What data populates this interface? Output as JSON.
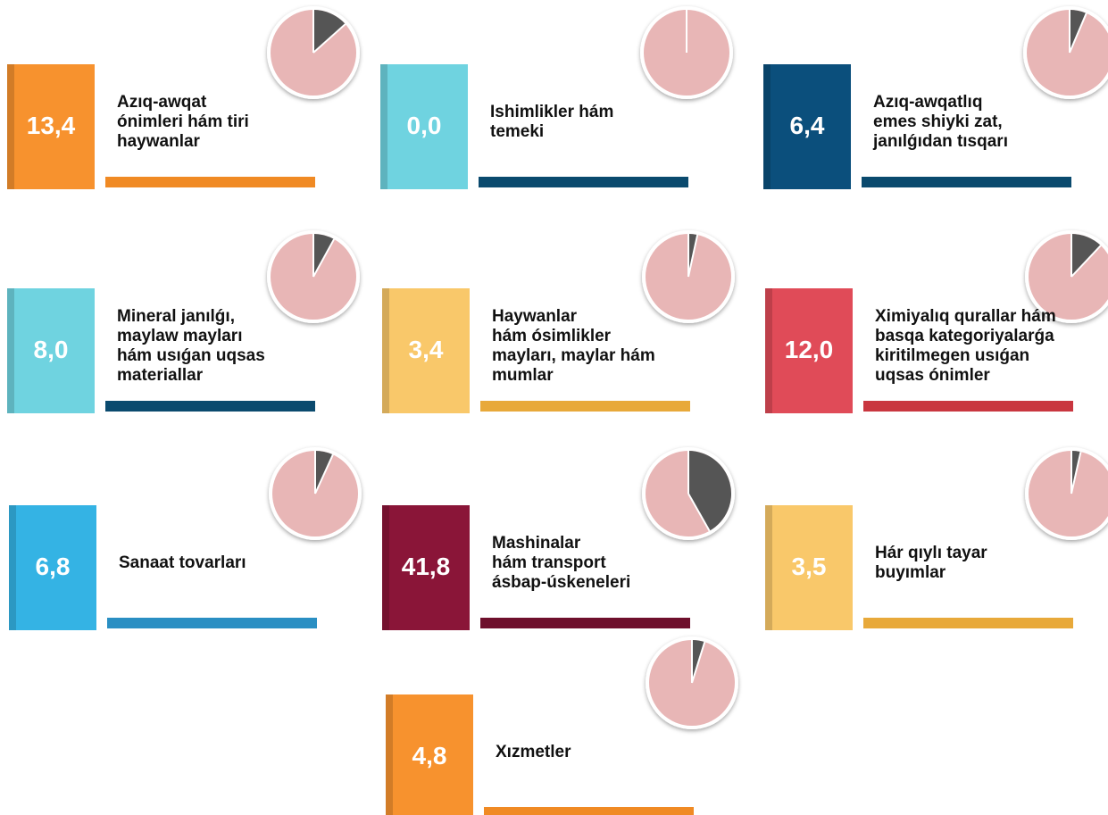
{
  "chart_data": [
    {
      "type": "pie",
      "title": "Azıq-awqat\nónimleri hám tiri\nhaywanlar",
      "values": [
        13.4
      ],
      "value_labels": [
        "13,4"
      ],
      "color": "#f7922e",
      "bar_color": "#f08a24"
    },
    {
      "type": "pie",
      "title": "Ishimlikler hám\ntemeki",
      "values": [
        0.0
      ],
      "value_labels": [
        "0,0"
      ],
      "color": "#6fd3e0",
      "bar_color": "#0a4a6e"
    },
    {
      "type": "pie",
      "title": "Azıq-awqatlıq\nemes shiyki zat,\njanılǵıdan tısqarı",
      "values": [
        6.4
      ],
      "value_labels": [
        "6,4"
      ],
      "color": "#0b4f7c",
      "bar_color": "#0a4a6e"
    },
    {
      "type": "pie",
      "title": "Mineral janılǵı,\nmaylaw mayları\nhám usıǵan uqsas\nmateriallar",
      "values": [
        8.0
      ],
      "value_labels": [
        "8,0"
      ],
      "color": "#6fd3e0",
      "bar_color": "#0a4a6e"
    },
    {
      "type": "pie",
      "title": "Haywanlar\nhám ósimlikler\nmayları, maylar hám\nmumlar",
      "values": [
        3.4
      ],
      "value_labels": [
        "3,4"
      ],
      "color": "#f9c86a",
      "bar_color": "#e8a93a"
    },
    {
      "type": "pie",
      "title": "Ximiyalıq qurallar hám\nbasqa kategoriyalarǵa\nkiritilmegen usıǵan\nuqsas ónimler",
      "values": [
        12.0
      ],
      "value_labels": [
        "12,0"
      ],
      "color": "#e04b58",
      "bar_color": "#c9363f"
    },
    {
      "type": "pie",
      "title": "Sanaat tovarları",
      "values": [
        6.8
      ],
      "value_labels": [
        "6,8"
      ],
      "color": "#34b3e4",
      "bar_color": "#2a8fc3"
    },
    {
      "type": "pie",
      "title": "Mashinalar\nhám transport\násbap-úskeneleri",
      "values": [
        41.8
      ],
      "value_labels": [
        "41,8"
      ],
      "color": "#8a1538",
      "bar_color": "#6e0f2c"
    },
    {
      "type": "pie",
      "title": "Hár qıylı tayar\nbuyımlar",
      "values": [
        3.5
      ],
      "value_labels": [
        "3,5"
      ],
      "color": "#f9c86a",
      "bar_color": "#e8a93a"
    },
    {
      "type": "pie",
      "title": "Xızmetler",
      "values": [
        4.8
      ],
      "value_labels": [
        "4,8"
      ],
      "color": "#f7922e",
      "bar_color": "#f08a24"
    }
  ]
}
